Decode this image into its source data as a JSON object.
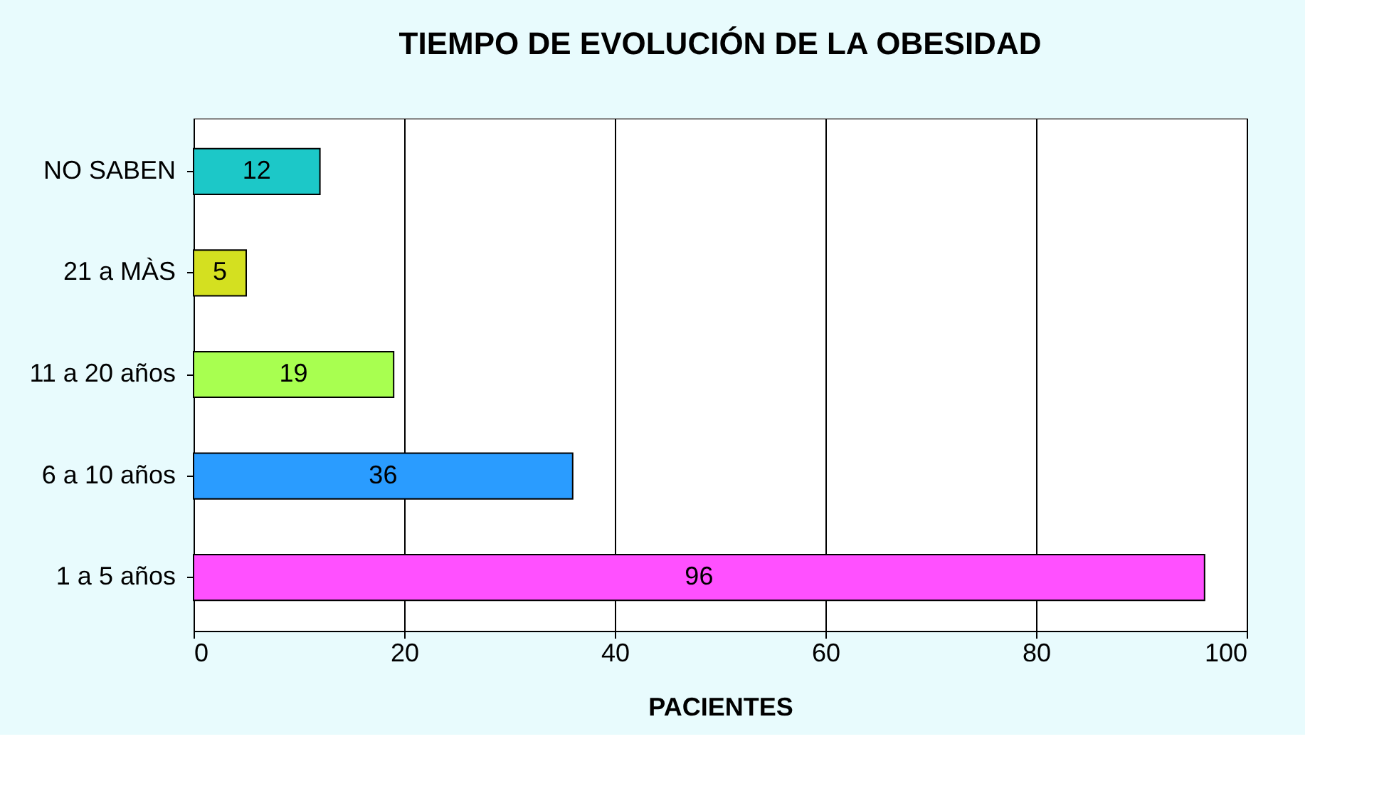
{
  "chart_data": {
    "type": "bar",
    "orientation": "horizontal",
    "title": "TIEMPO DE EVOLUCIÓN DE LA OBESIDAD",
    "xlabel": "PACIENTES",
    "categories": [
      "NO SABEN",
      "21 a MÀS",
      "11 a 20 años",
      "6 a 10 años",
      "1 a 5 años"
    ],
    "values": [
      12,
      5,
      19,
      36,
      96
    ],
    "colors": [
      "#1cc8c8",
      "#d4e020",
      "#a8ff50",
      "#2a9cff",
      "#ff50ff"
    ],
    "xlim": [
      0,
      100
    ],
    "xticks": [
      0,
      20,
      40,
      60,
      80,
      100
    ],
    "grid": "x",
    "data_labels": true
  }
}
